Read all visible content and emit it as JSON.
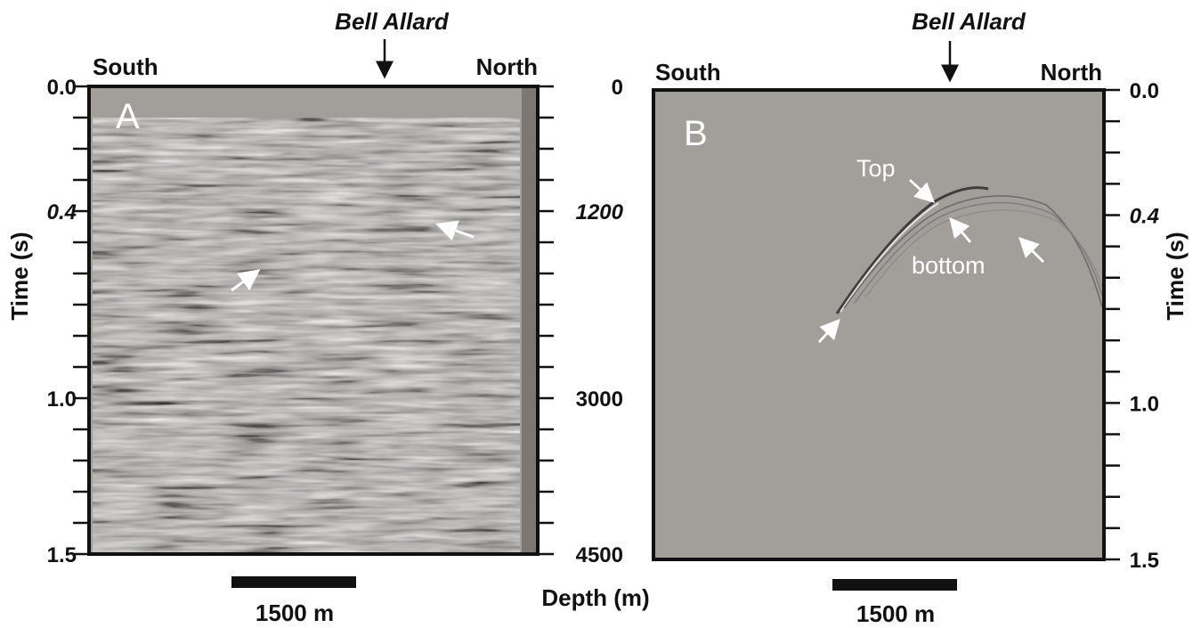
{
  "panel_a": {
    "letter": "A",
    "site_label": "Bell Allard",
    "direction_left": "South",
    "direction_right": "North",
    "left_axis": {
      "label": "Time (s)",
      "ticks": [
        {
          "v": 0.0,
          "text": "0.0"
        },
        {
          "v": 0.4,
          "text": "0.4",
          "italic": true
        },
        {
          "v": 1.0,
          "text": "1.0"
        },
        {
          "v": 1.5,
          "text": "1.5"
        }
      ],
      "range": [
        0.0,
        1.5
      ]
    },
    "right_axis": {
      "ticks": [
        {
          "v": 0.0,
          "text": "0"
        },
        {
          "v": 0.4,
          "text": "1200",
          "italic": true
        },
        {
          "v": 1.0,
          "text": "3000"
        },
        {
          "v": 1.5,
          "text": "4500"
        }
      ]
    },
    "scale_bar": "1500 m"
  },
  "depth_label": "Depth (m)",
  "panel_b": {
    "letter": "B",
    "site_label": "Bell Allard",
    "direction_left": "South",
    "direction_right": "North",
    "right_axis": {
      "label": "Time (s)",
      "ticks": [
        {
          "v": 0.0,
          "text": "0.0"
        },
        {
          "v": 0.4,
          "text": "0.4",
          "italic": true
        },
        {
          "v": 1.0,
          "text": "1.0"
        },
        {
          "v": 1.5,
          "text": "1.5"
        }
      ],
      "range": [
        0.0,
        1.5
      ]
    },
    "annotations": {
      "top": "Top",
      "bottom": "bottom"
    },
    "scale_bar": "1500 m"
  },
  "colors": {
    "section_bg": "#a29f9a",
    "seismic_gray": "#b4b1ac",
    "frame": "#111111",
    "arrow_white": "#ffffff"
  }
}
